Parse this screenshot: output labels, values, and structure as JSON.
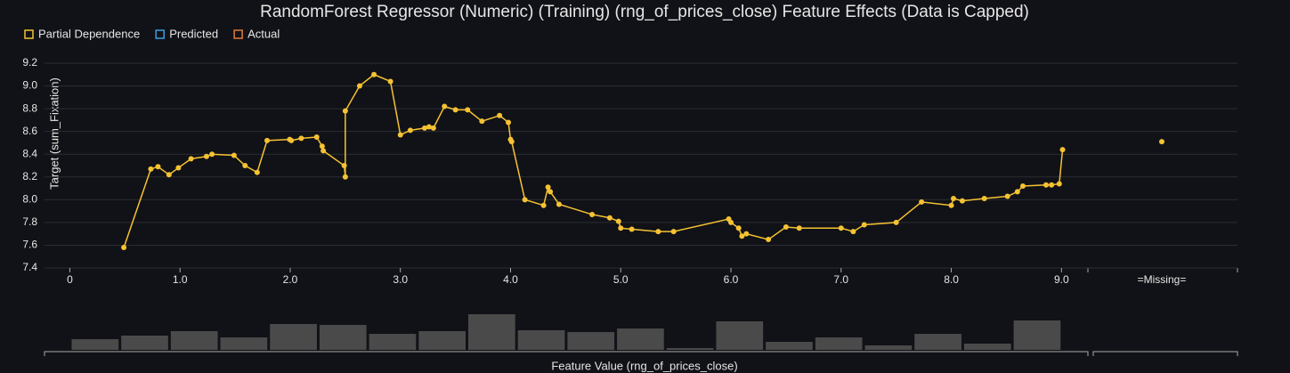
{
  "chart_data": {
    "type": "line",
    "title": "RandomForest Regressor (Numeric) (Training) (rng_of_prices_close) Feature Effects (Data is Capped)",
    "legend": [
      {
        "name": "Partial Dependence",
        "color": "#f5c232"
      },
      {
        "name": "Predicted",
        "color": "#3a9ee0"
      },
      {
        "name": "Actual",
        "color": "#e07b39"
      }
    ],
    "y_label": "Target (sum_Fixation)",
    "x_label": "Feature Value (rng_of_prices_close)",
    "series": [
      {
        "name": "Partial Dependence",
        "color": "#f5c232",
        "x": [
          0.49,
          0.735,
          0.8,
          0.9,
          0.985,
          1.1,
          1.24,
          1.29,
          1.49,
          1.59,
          1.7,
          1.79,
          1.995,
          2.01,
          2.1,
          2.24,
          2.29,
          2.3,
          2.49,
          2.5,
          2.5,
          2.63,
          2.76,
          2.91,
          3.0,
          3.09,
          3.22,
          3.26,
          3.3,
          3.4,
          3.5,
          3.61,
          3.74,
          3.9,
          3.98,
          4.0,
          4.01,
          4.13,
          4.3,
          4.34,
          4.36,
          4.44,
          4.74,
          4.9,
          4.98,
          5.0,
          5.1,
          5.34,
          5.48,
          5.98,
          6.0,
          6.07,
          6.1,
          6.14,
          6.34,
          6.5,
          6.62,
          7.0,
          7.11,
          7.21,
          7.5,
          7.73,
          8.0,
          8.02,
          8.1,
          8.3,
          8.51,
          8.6,
          8.65,
          8.86,
          8.91,
          8.98,
          9.01
        ],
        "values": [
          7.58,
          8.27,
          8.29,
          8.22,
          8.28,
          8.36,
          8.38,
          8.4,
          8.39,
          8.3,
          8.24,
          8.52,
          8.53,
          8.52,
          8.54,
          8.55,
          8.47,
          8.43,
          8.3,
          8.2,
          8.78,
          9.0,
          9.1,
          9.04,
          8.57,
          8.61,
          8.63,
          8.64,
          8.63,
          8.82,
          8.79,
          8.79,
          8.69,
          8.74,
          8.68,
          8.53,
          8.51,
          8.0,
          7.95,
          8.11,
          8.07,
          7.96,
          7.87,
          7.84,
          7.81,
          7.75,
          7.74,
          7.72,
          7.72,
          7.83,
          7.8,
          7.75,
          7.68,
          7.7,
          7.65,
          7.76,
          7.75,
          7.75,
          7.72,
          7.78,
          7.8,
          7.98,
          7.95,
          8.01,
          7.99,
          8.01,
          8.03,
          8.07,
          8.12,
          8.13,
          8.13,
          8.14,
          8.44
        ]
      }
    ],
    "missing_label": "=Missing=",
    "missing_value": 8.51,
    "xlim": [
      -0.23,
      9.24
    ],
    "ylim": [
      7.4,
      9.2
    ],
    "xticks": [
      0,
      {
        "value": 1,
        "label": "1.0"
      },
      {
        "value": 2,
        "label": "2.0"
      },
      {
        "value": 3,
        "label": "3.0"
      },
      {
        "value": 4,
        "label": "4.0"
      },
      {
        "value": 5,
        "label": "5.0"
      },
      {
        "value": 6,
        "label": "6.0"
      },
      {
        "value": 7,
        "label": "7.0"
      },
      {
        "value": 8,
        "label": "8.0"
      },
      {
        "value": 9,
        "label": "9.0"
      }
    ],
    "yticks": [
      7.4,
      7.6,
      7.8,
      {
        "value": 8,
        "label": "8.0"
      },
      8.2,
      8.4,
      8.6,
      8.8,
      {
        "value": 9,
        "label": "9.0"
      },
      9.2
    ],
    "grid": true,
    "histogram": {
      "color": "#4a4a4a",
      "bins": [
        0,
        0.45,
        0.9,
        1.35,
        1.8,
        2.25,
        2.7,
        3.15,
        3.6,
        4.05,
        4.5,
        4.95,
        5.4,
        5.85,
        6.3,
        6.75,
        7.2,
        7.65,
        8.1,
        8.55,
        9.0
      ],
      "counts": [
        12,
        16,
        21,
        14,
        29,
        28,
        18,
        21,
        40,
        22,
        20,
        24,
        2,
        32,
        9,
        14,
        5,
        18,
        7,
        33
      ]
    }
  }
}
